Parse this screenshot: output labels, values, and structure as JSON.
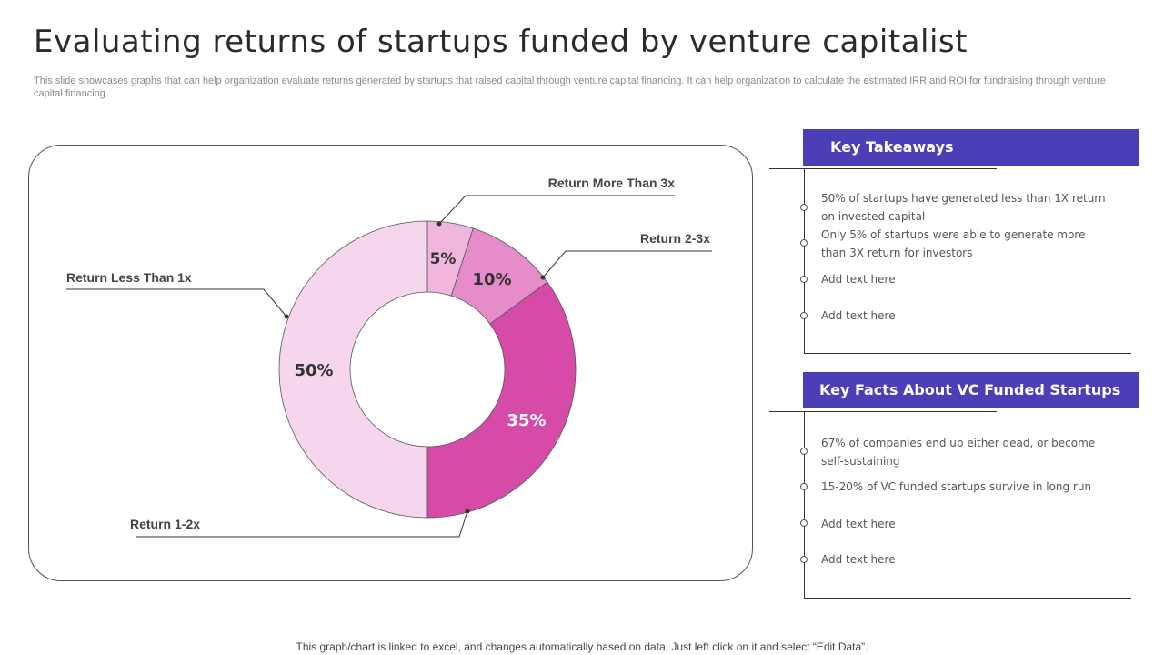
{
  "page": {
    "title": "Evaluating returns of startups funded by venture capitalist",
    "subtitle": "This slide showcases graphs that can help organization evaluate returns generated by startups that raised capital through venture capital financing. It can help organization to calculate the estimated IRR and ROI for fundraising through venture capital financing",
    "footer": "This graph/chart is linked to excel,  and changes automatically based on data. Just left click on it and select “Edit Data”."
  },
  "chart_data": {
    "type": "pie",
    "donut": true,
    "title": "",
    "categories": [
      "Return More Than 3x",
      "Return 2-3x",
      "Return 1-2x",
      "Return Less Than 1x"
    ],
    "values": [
      5,
      10,
      35,
      50
    ],
    "value_labels": [
      "5%",
      "10%",
      "35%",
      "50%"
    ],
    "colors": [
      "#f0b6dd",
      "#e68ccb",
      "#d64aa8",
      "#f6d6ec"
    ],
    "legend": "callout-labels"
  },
  "panels": {
    "takeaways": {
      "header": "Key Takeaways",
      "items": [
        "50% of startups have generated  less than  1X  return on invested  capital",
        "Only 5% of startups were  able to generate  more than 3X  return  for investors",
        "Add text here",
        "Add text here"
      ]
    },
    "facts": {
      "header": "Key Facts About VC Funded Startups",
      "items": [
        "67% of companies  end up either dead,  or  become self-sustaining",
        "15-20% of VC funded  startups survive  in long run",
        "Add text here",
        "Add text here"
      ]
    }
  }
}
